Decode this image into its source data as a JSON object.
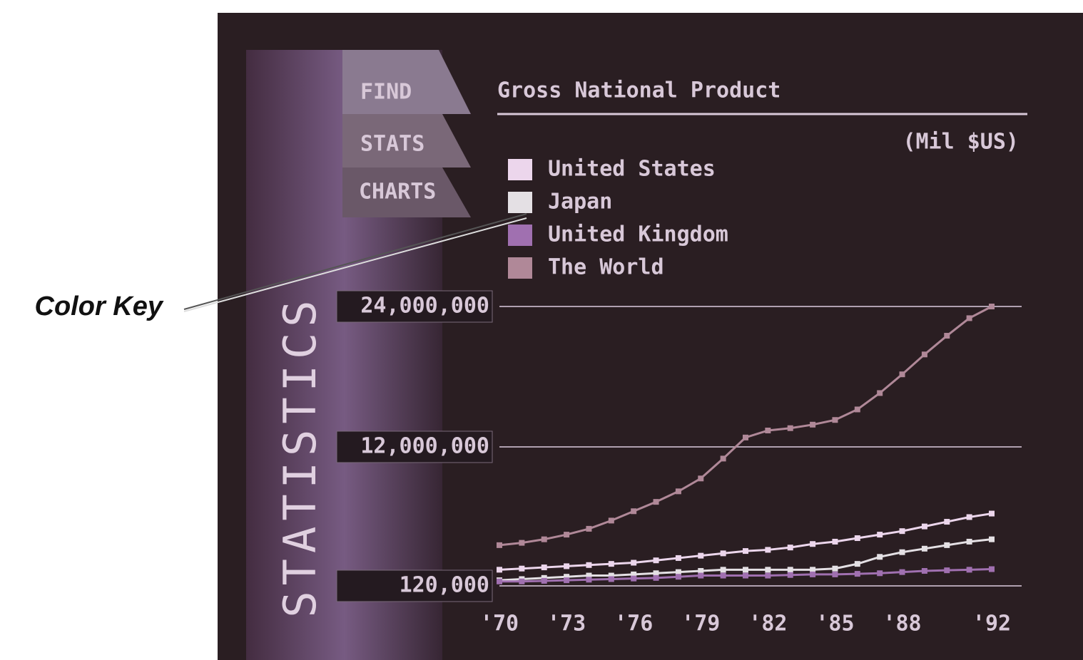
{
  "callout": "Color Key",
  "menu": [
    "FIND",
    "STATS",
    "CHARTS"
  ],
  "sidebar_label": "STATISTICS",
  "chart_data": {
    "type": "line",
    "title": "Gross National Product",
    "subtitle": "(Mil $US)",
    "x": [
      1970,
      1971,
      1972,
      1973,
      1974,
      1975,
      1976,
      1977,
      1978,
      1979,
      1980,
      1981,
      1982,
      1983,
      1984,
      1985,
      1986,
      1987,
      1988,
      1989,
      1990,
      1991,
      1992
    ],
    "xlim": [
      1970,
      1992
    ],
    "xticks": [
      {
        "value": 1970,
        "label": "'70"
      },
      {
        "value": 1973,
        "label": "'73"
      },
      {
        "value": 1976,
        "label": "'76"
      },
      {
        "value": 1979,
        "label": "'79"
      },
      {
        "value": 1982,
        "label": "'82"
      },
      {
        "value": 1985,
        "label": "'85"
      },
      {
        "value": 1988,
        "label": "'88"
      },
      {
        "value": 1992,
        "label": "'92"
      }
    ],
    "ylim": [
      120000,
      24000000
    ],
    "yticks": [
      {
        "value": 120000,
        "label": "120,000"
      },
      {
        "value": 12000000,
        "label": "12,000,000"
      },
      {
        "value": 24000000,
        "label": "24,000,000"
      }
    ],
    "grid": true,
    "series": [
      {
        "name": "United States",
        "color": "#ecd6ec",
        "values": [
          1500000,
          1600000,
          1700000,
          1800000,
          1900000,
          2000000,
          2100000,
          2300000,
          2500000,
          2700000,
          2900000,
          3100000,
          3200000,
          3400000,
          3700000,
          3900000,
          4200000,
          4500000,
          4800000,
          5200000,
          5600000,
          6000000,
          6300000
        ]
      },
      {
        "name": "Japan",
        "color": "#e4e0e4",
        "values": [
          600000,
          700000,
          800000,
          900000,
          1000000,
          1000000,
          1100000,
          1200000,
          1300000,
          1400000,
          1500000,
          1500000,
          1500000,
          1500000,
          1500000,
          1600000,
          2000000,
          2600000,
          3000000,
          3300000,
          3600000,
          3900000,
          4100000
        ]
      },
      {
        "name": "United Kingdom",
        "color": "#a070b0",
        "values": [
          500000,
          500000,
          550000,
          600000,
          650000,
          700000,
          750000,
          800000,
          900000,
          1000000,
          1000000,
          1000000,
          1000000,
          1050000,
          1100000,
          1100000,
          1150000,
          1200000,
          1300000,
          1400000,
          1450000,
          1500000,
          1550000
        ]
      },
      {
        "name": "The World",
        "color": "#b08898",
        "values": [
          3600000,
          3800000,
          4100000,
          4500000,
          5000000,
          5700000,
          6500000,
          7300000,
          8200000,
          9300000,
          11000000,
          12800000,
          13400000,
          13600000,
          13900000,
          14300000,
          15200000,
          16600000,
          18200000,
          19900000,
          21500000,
          23000000,
          24000000
        ]
      }
    ]
  }
}
